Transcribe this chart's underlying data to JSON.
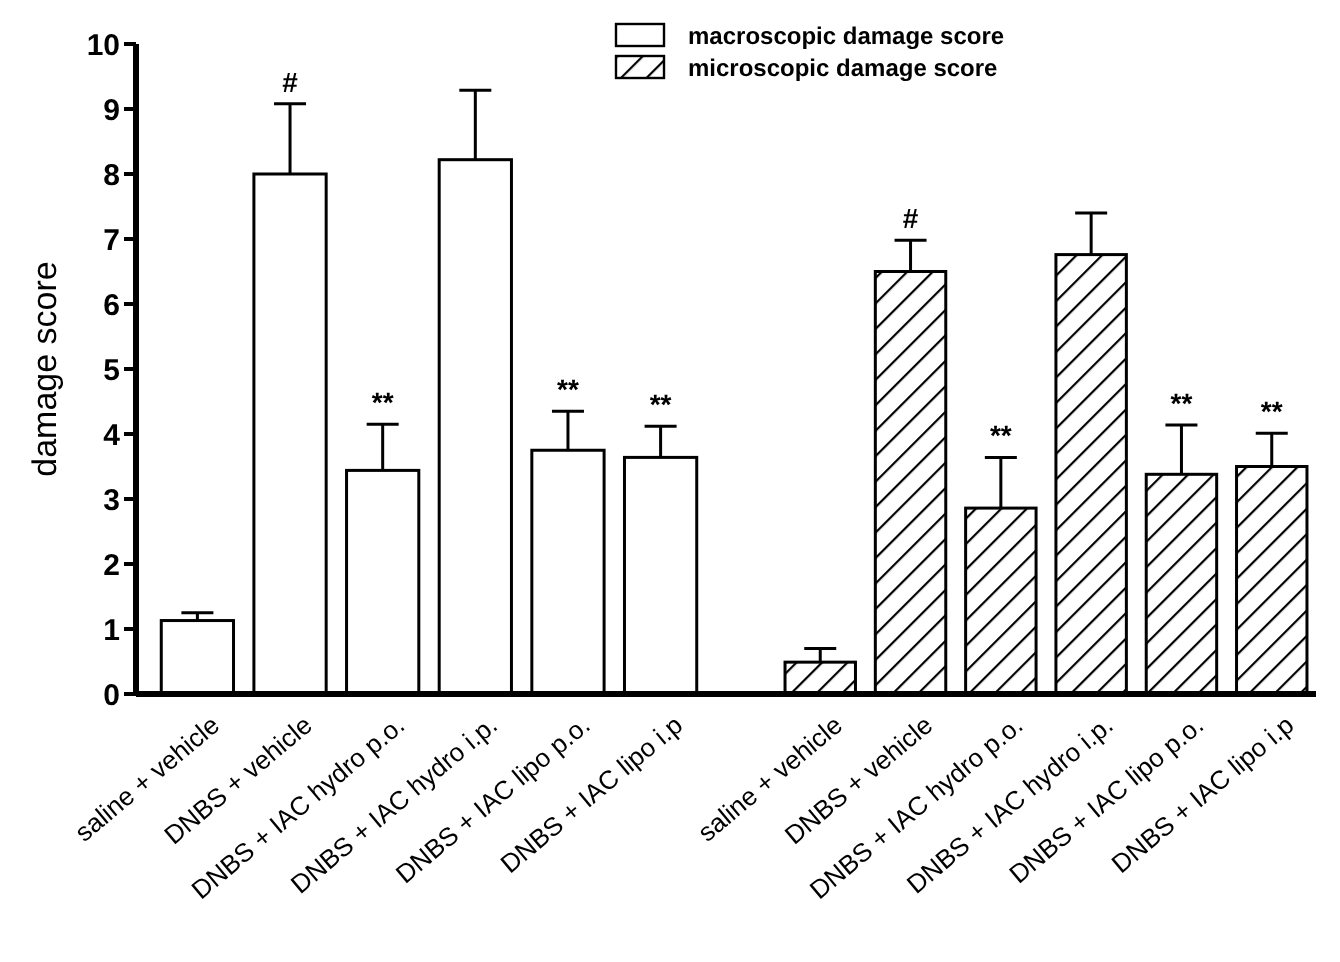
{
  "chart_data": [
    {
      "type": "bar",
      "ylabel": "damage score",
      "ylim": [
        0,
        10
      ],
      "yticks": [
        0,
        1,
        2,
        3,
        4,
        5,
        6,
        7,
        8,
        9,
        10
      ],
      "legend": "top right",
      "grid": false,
      "categories": [
        "saline + vehicle",
        "DNBS + vehicle",
        "DNBS + IAC hydro p.o.",
        "DNBS + IAC hydro i.p.",
        "DNBS + IAC lipo p.o.",
        "DNBS + IAC lipo i.p"
      ],
      "series": [
        {
          "name": "macroscopic damage score",
          "color": "#ffffff",
          "values": [
            1.13,
            8.0,
            3.44,
            8.22,
            3.75,
            3.64
          ],
          "errors": [
            [
              1.13,
              1.25
            ],
            [
              8.0,
              9.08
            ],
            [
              3.44,
              4.15
            ],
            [
              8.22,
              9.29
            ],
            [
              3.75,
              4.35
            ],
            [
              3.64,
              4.12
            ]
          ]
        }
      ],
      "annotations": [
        {
          "text": "#",
          "x": "DNBS + vehicle",
          "y": 9.08
        },
        {
          "text": "**",
          "x": "DNBS + IAC hydro p.o.",
          "y": 4.15
        },
        {
          "text": "**",
          "x": "DNBS + IAC lipo p.o.",
          "y": 4.35
        },
        {
          "text": "**",
          "x": "DNBS + IAC lipo i.p",
          "y": 4.12
        }
      ]
    },
    {
      "type": "bar",
      "ylim": [
        0,
        10
      ],
      "tick_labels": "x",
      "legend": "top left",
      "grid": false,
      "categories": [
        "saline + vehicle",
        "DNBS + vehicle",
        "DNBS + IAC hydro p.o.",
        "DNBS + IAC hydro i.p.",
        "DNBS + IAC lipo p.o.",
        "DNBS + IAC lipo i.p"
      ],
      "series": [
        {
          "name": "microscopic damage score",
          "color": "#000000",
          "values": [
            0.49,
            6.5,
            2.86,
            6.76,
            3.38,
            3.5
          ],
          "errors": [
            [
              0.49,
              0.7
            ],
            [
              6.5,
              6.98
            ],
            [
              2.86,
              3.64
            ],
            [
              6.76,
              7.4
            ],
            [
              3.38,
              4.14
            ],
            [
              3.5,
              4.01
            ]
          ]
        }
      ],
      "annotations": [
        {
          "text": "#",
          "x": "DNBS + vehicle",
          "y": 6.98
        },
        {
          "text": "**",
          "x": "DNBS + IAC hydro p.o.",
          "y": 3.64
        },
        {
          "text": "**",
          "x": "DNBS + IAC lipo p.o.",
          "y": 4.14
        },
        {
          "text": "**",
          "x": "DNBS + IAC lipo i.p",
          "y": 4.01
        }
      ]
    }
  ]
}
